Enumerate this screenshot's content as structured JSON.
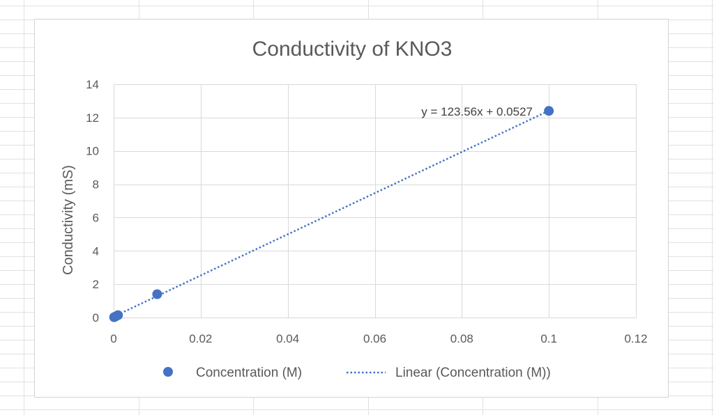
{
  "chart_data": {
    "type": "scatter",
    "title": "Conductivity of KNO3",
    "xlabel": "",
    "ylabel": "Conductivity (mS)",
    "xlim": [
      0,
      0.12
    ],
    "ylim": [
      0,
      14
    ],
    "x_ticks": [
      "0",
      "0.02",
      "0.04",
      "0.06",
      "0.08",
      "0.1",
      "0.12"
    ],
    "y_ticks": [
      "0",
      "2",
      "4",
      "6",
      "8",
      "10",
      "12",
      "14"
    ],
    "grid": true,
    "legend_position": "bottom",
    "series": [
      {
        "name": "Concentration (M)",
        "color": "#4472c4",
        "marker": "circle",
        "points": [
          {
            "x": 0.0001,
            "y": 0.02
          },
          {
            "x": 0.0005,
            "y": 0.07
          },
          {
            "x": 0.001,
            "y": 0.14
          },
          {
            "x": 0.01,
            "y": 1.4
          },
          {
            "x": 0.1,
            "y": 12.4
          }
        ]
      }
    ],
    "trendline": {
      "name": "Linear (Concentration (M))",
      "type": "linear",
      "slope": 123.56,
      "intercept": 0.0527,
      "x_range": [
        0,
        0.1
      ],
      "color": "#4472c4",
      "style": "dotted",
      "equation_label": "y = 123.56x + 0.0527"
    }
  }
}
